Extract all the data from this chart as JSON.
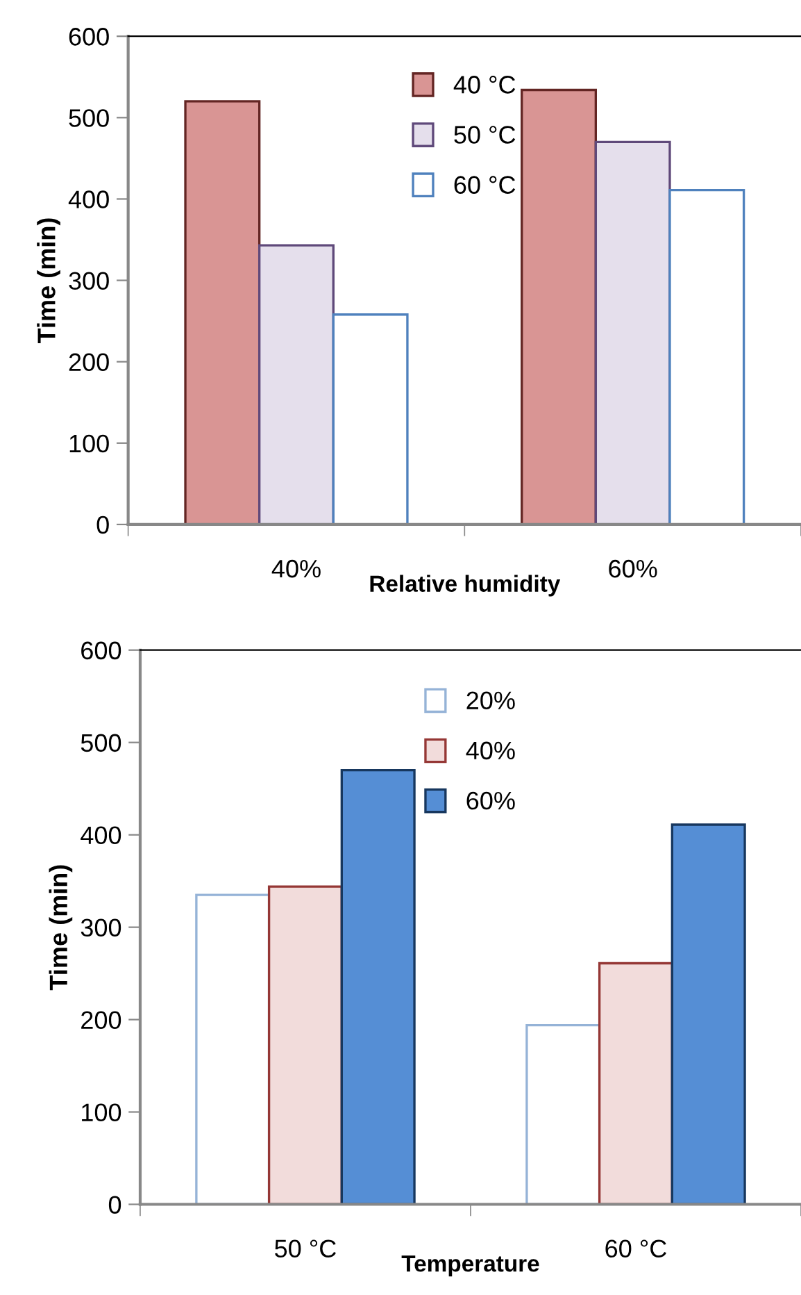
{
  "chart_data": [
    {
      "type": "bar",
      "xlabel": "Relative humidity",
      "ylabel": "Time (min)",
      "categories": [
        "40%",
        "60%"
      ],
      "series": [
        {
          "name": "40 °C",
          "color": "#d99594",
          "values": [
            520,
            534
          ]
        },
        {
          "name": "50 °C",
          "color": "#e5dfec",
          "values": [
            343,
            470
          ]
        },
        {
          "name": "60 °C",
          "color": "#ffffff",
          "values": [
            258,
            411
          ]
        }
      ],
      "ylim": [
        0,
        600
      ],
      "yticks": [
        0,
        100,
        200,
        300,
        400,
        500,
        600
      ],
      "legend": "top",
      "grid": false
    },
    {
      "type": "bar",
      "xlabel": "Temperature",
      "ylabel": "Time (min)",
      "categories": [
        "50 °C",
        "60 °C"
      ],
      "series": [
        {
          "name": "20%",
          "color": "#ffffff",
          "values": [
            335,
            194
          ]
        },
        {
          "name": "40%",
          "color": "#f2dcdb",
          "values": [
            344,
            261
          ]
        },
        {
          "name": "60%",
          "color": "#558ed5",
          "values": [
            470,
            411
          ]
        }
      ],
      "ylim": [
        0,
        600
      ],
      "yticks": [
        0,
        100,
        200,
        300,
        400,
        500,
        600
      ],
      "legend": "top",
      "grid": false
    }
  ]
}
